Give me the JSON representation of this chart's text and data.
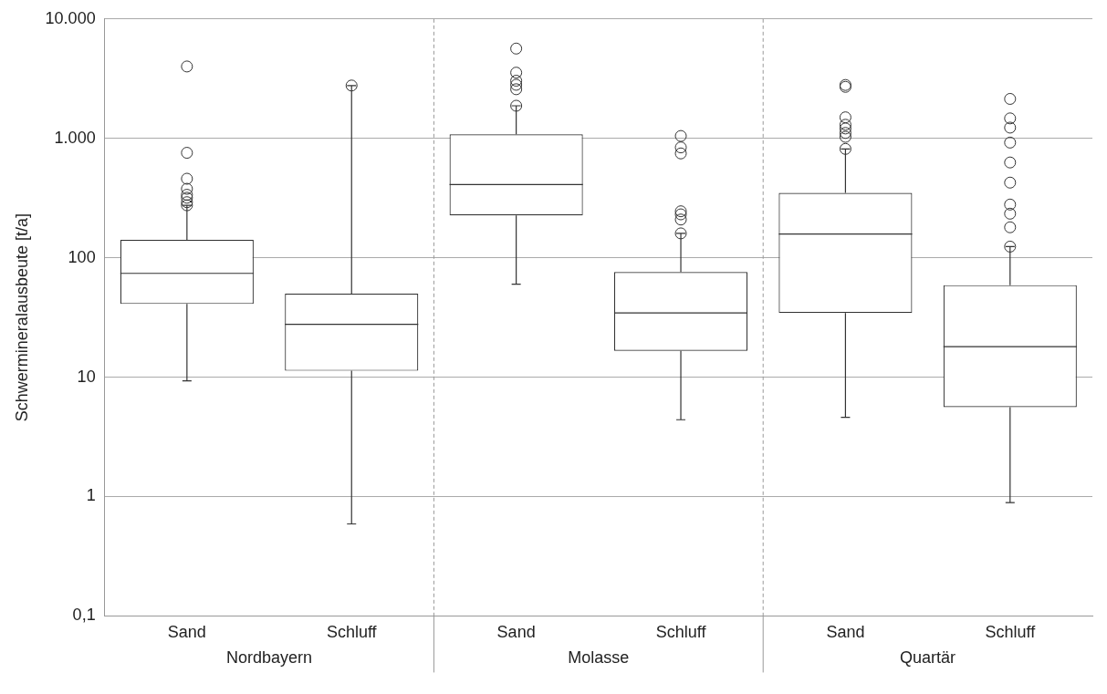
{
  "chart_data": {
    "type": "box",
    "ylabel": "Schwermineralausbeute [t/a]",
    "categories": [
      "Sand",
      "Schluff",
      "Sand",
      "Schluff",
      "Sand",
      "Schluff"
    ],
    "annotations": [
      "Nordbayern",
      "Molasse",
      "Quartär"
    ],
    "boxes": [
      {
        "low": 9.3,
        "q1": 41,
        "median": 74,
        "q3": 141,
        "high": 275,
        "outliers": [
          4000,
          757,
          459,
          378,
          337,
          318,
          292,
          275
        ]
      },
      {
        "low": 0.59,
        "q1": 11.3,
        "median": 27.7,
        "q3": 50,
        "high": 2770,
        "outliers": [
          2770
        ]
      },
      {
        "low": 60,
        "q1": 226,
        "median": 411,
        "q3": 1080,
        "high": 1875,
        "outliers": [
          5650,
          3550,
          3040,
          2810,
          2580,
          1875
        ]
      },
      {
        "low": 4.4,
        "q1": 16.6,
        "median": 34.5,
        "q3": 76,
        "high": 160,
        "outliers": [
          1047,
          840,
          748,
          245,
          231,
          209,
          160
        ]
      },
      {
        "low": 4.6,
        "q1": 34.5,
        "median": 158,
        "q3": 349,
        "high": 816,
        "outliers": [
          2800,
          2700,
          1500,
          1300,
          1210,
          1110,
          1030,
          816
        ]
      },
      {
        "low": 0.89,
        "q1": 5.6,
        "median": 18,
        "q3": 59,
        "high": 124,
        "outliers": [
          2140,
          1470,
          1230,
          922,
          628,
          426,
          279,
          234,
          180,
          124
        ]
      }
    ],
    "color": "#333333",
    "marker": "circle",
    "log": true,
    "ylim": [
      0.1,
      10000
    ],
    "yticks": [
      {
        "value": 0.1,
        "label": "0,1"
      },
      1,
      10,
      100,
      {
        "value": 1000,
        "label": "1.000"
      },
      {
        "value": 10000,
        "label": "10.000"
      }
    ],
    "grid": "y"
  }
}
